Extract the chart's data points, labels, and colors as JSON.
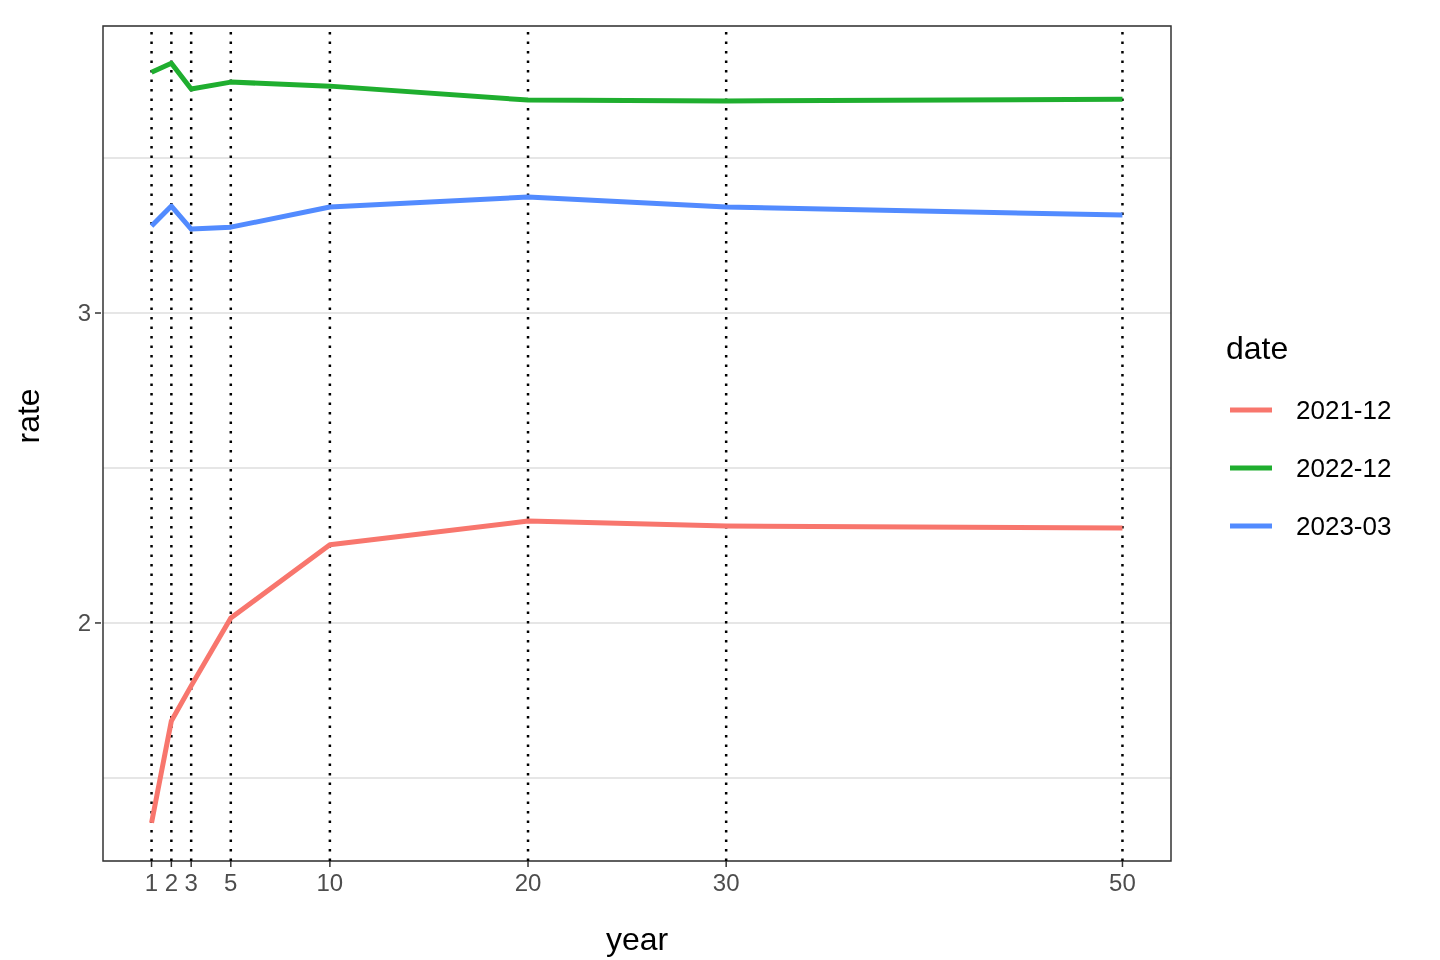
{
  "chart_data": {
    "type": "line",
    "xlabel": "year",
    "ylabel": "rate",
    "legend_title": "date",
    "x": [
      1,
      2,
      3,
      5,
      10,
      20,
      30,
      50
    ],
    "series": [
      {
        "name": "2021-12",
        "color": "#f8766d",
        "values": [
          1.355,
          1.684,
          1.797,
          2.016,
          2.252,
          2.329,
          2.313,
          2.306
        ]
      },
      {
        "name": "2022-12",
        "color": "#1fae2f",
        "values": [
          3.777,
          3.806,
          3.723,
          3.745,
          3.732,
          3.687,
          3.684,
          3.69
        ]
      },
      {
        "name": "2023-03",
        "color": "#528bff",
        "values": [
          3.281,
          3.345,
          3.271,
          3.277,
          3.342,
          3.374,
          3.342,
          3.316
        ]
      }
    ],
    "xlim": [
      -1.45,
      52.45
    ],
    "xticks": [
      1,
      2,
      3,
      5,
      10,
      20,
      30,
      50
    ],
    "ylim": [
      1.232,
      3.926
    ],
    "yticks": [
      {
        "value": 1.5,
        "label": null
      },
      2,
      {
        "value": 2.5,
        "label": null
      },
      3,
      {
        "value": 3.5,
        "label": null
      }
    ],
    "ref_lines": [
      {
        "axis": "x",
        "value": 1,
        "color": "#000000",
        "line_style": "dotted"
      },
      {
        "axis": "x",
        "value": 2,
        "color": "#000000",
        "line_style": "dotted"
      },
      {
        "axis": "x",
        "value": 3,
        "color": "#000000",
        "line_style": "dotted"
      },
      {
        "axis": "x",
        "value": 5,
        "color": "#000000",
        "line_style": "dotted"
      },
      {
        "axis": "x",
        "value": 10,
        "color": "#000000",
        "line_style": "dotted"
      },
      {
        "axis": "x",
        "value": 20,
        "color": "#000000",
        "line_style": "dotted"
      },
      {
        "axis": "x",
        "value": 30,
        "color": "#000000",
        "line_style": "dotted"
      },
      {
        "axis": "x",
        "value": 50,
        "color": "#000000",
        "line_style": "dotted"
      }
    ],
    "grid": "y",
    "legend": "right"
  }
}
